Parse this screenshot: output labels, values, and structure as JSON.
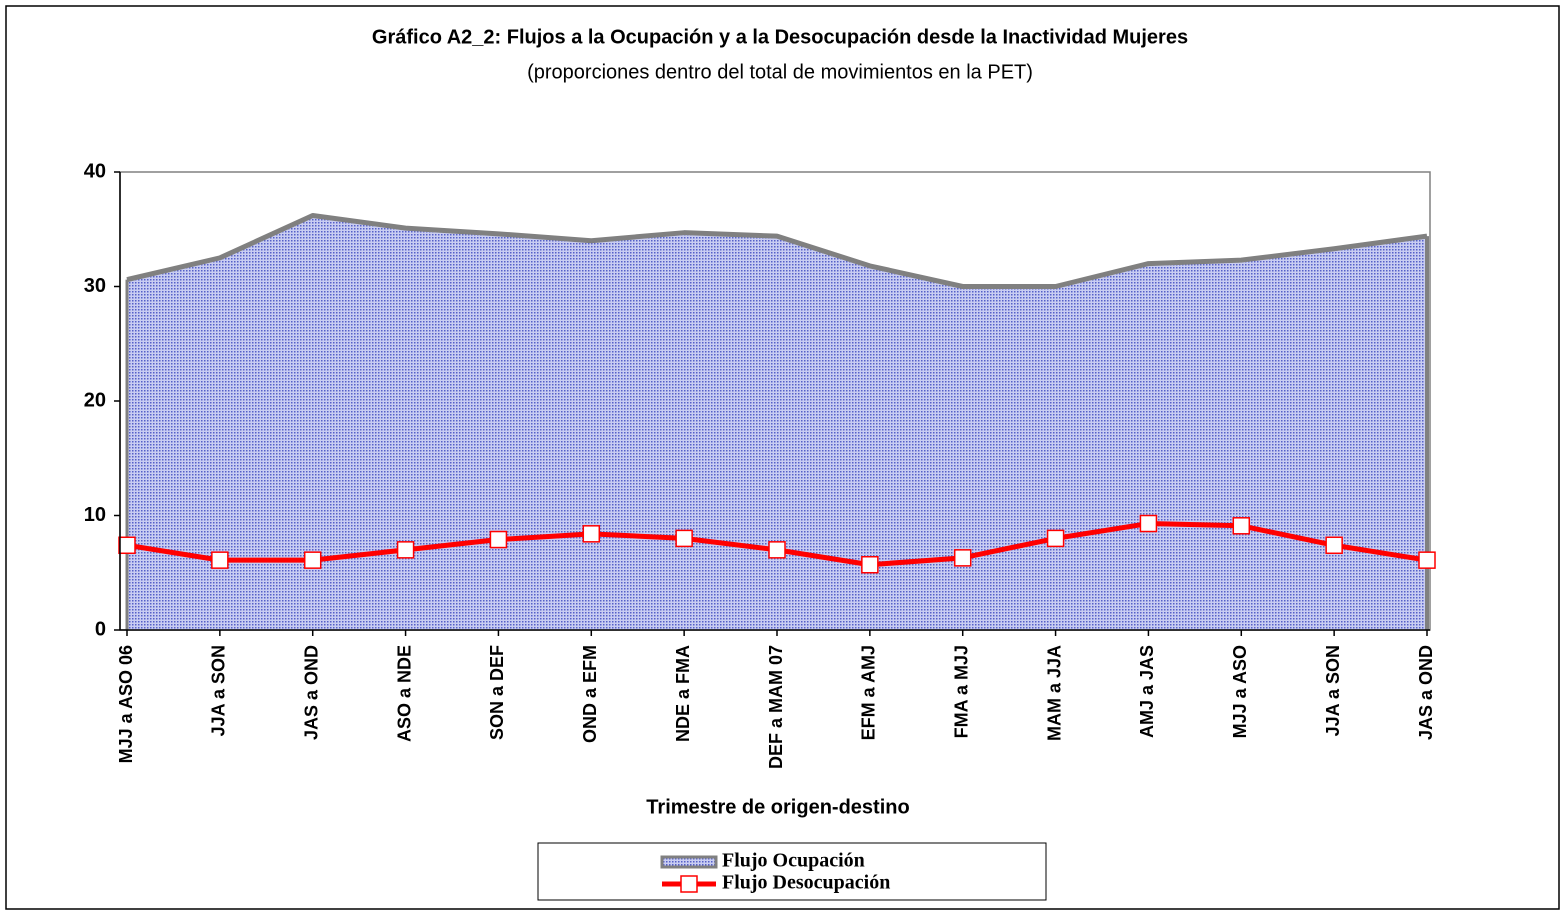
{
  "chart_data": {
    "type": "area_line",
    "title": "Gráfico A2_2: Flujos a la Ocupación y a la Desocupación desde la Inactividad Mujeres",
    "subtitle": "(proporciones dentro del total de movimientos en la PET)",
    "x_label": "Trimestre de origen-destino",
    "categories": [
      "MJJ a ASO 06",
      "JJA a SON",
      "JAS a OND",
      "ASO a NDE",
      "SON a DEF",
      "OND a EFM",
      "NDE a FMA",
      "DEF a MAM 07",
      "EFM a AMJ",
      "FMA a MJJ",
      "MAM a JJA",
      "AMJ a JAS",
      "MJJ a ASO",
      "JJA a SON",
      "JAS a OND"
    ],
    "series": [
      {
        "name": "Flujo Ocupación",
        "type": "area",
        "color": "#a9aee6",
        "values": [
          30.6,
          32.5,
          36.2,
          35.1,
          34.6,
          34.0,
          34.7,
          34.4,
          31.8,
          30.0,
          30.0,
          32.0,
          32.3,
          33.3,
          34.4
        ]
      },
      {
        "name": "Flujo Desocupación",
        "type": "line",
        "color": "#ff0000",
        "values": [
          7.4,
          6.1,
          6.1,
          7.0,
          7.9,
          8.4,
          8.0,
          7.0,
          5.7,
          6.3,
          8.0,
          9.3,
          9.1,
          7.4,
          6.1
        ]
      }
    ],
    "ylim": [
      0,
      40
    ],
    "yticks": [
      0,
      10,
      20,
      30,
      40
    ],
    "legend": "bottom"
  }
}
